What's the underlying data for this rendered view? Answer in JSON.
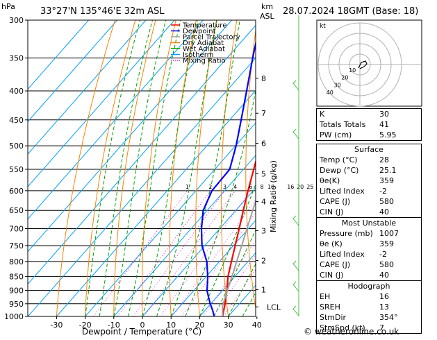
{
  "header": {
    "pressure_unit": "hPa",
    "location": "33°27'N  135°46'E  32m  ASL",
    "height_unit_line1": "km",
    "height_unit_line2": "ASL",
    "datetime": "28.07.2024  18GMT  (Base: 18)",
    "footer": "© weatheronline.co.uk"
  },
  "colors": {
    "temperature": "#ff0000",
    "dewpoint": "#0000ff",
    "parcel": "#a0a0a0",
    "dry_adiabat": "#ff8000",
    "wet_adiabat": "#00a000",
    "isotherm": "#00a0ff",
    "mixing_ratio": "#ff00ff"
  },
  "chart_data": {
    "type": "line",
    "title": "",
    "xlabel": "Dewpoint / Temperature (°C)",
    "ylabel": "",
    "right_axis_label": "Mixing Ratio (g/kg)",
    "x_ticks": [
      -30,
      -20,
      -10,
      0,
      10,
      20,
      30,
      40
    ],
    "xlim": [
      -35,
      40
    ],
    "y_ticks": [
      300,
      350,
      400,
      450,
      500,
      550,
      600,
      650,
      700,
      750,
      800,
      850,
      900,
      950,
      1000
    ],
    "ylim": [
      300,
      1000
    ],
    "y_scale": "log",
    "km_ticks": [
      {
        "label": "8",
        "p": 380
      },
      {
        "label": "7",
        "p": 438
      },
      {
        "label": "6",
        "p": 495
      },
      {
        "label": "5",
        "p": 560
      },
      {
        "label": "4",
        "p": 627
      },
      {
        "label": "3",
        "p": 706
      },
      {
        "label": "2",
        "p": 797
      },
      {
        "label": "1",
        "p": 897
      },
      {
        "label": "LCL",
        "p": 962
      }
    ],
    "mixing_ratio_labels": [
      "1",
      "2",
      "3",
      "4",
      "6",
      "8",
      "10",
      "16",
      "20",
      "25"
    ],
    "mixing_ratio_values": [
      1,
      2,
      3,
      4,
      6,
      8,
      10,
      16,
      20,
      25
    ],
    "legend": [
      "Temperature",
      "Dewpoint",
      "Parcel Trajectory",
      "Dry Adiabat",
      "Wet Adiabat",
      "Isotherm",
      "Mixing Ratio"
    ],
    "series": [
      {
        "name": "Temperature",
        "points": [
          [
            1000,
            28
          ],
          [
            975,
            26.5
          ],
          [
            950,
            25
          ],
          [
            925,
            23.2
          ],
          [
            900,
            21.6
          ],
          [
            875,
            19.6
          ],
          [
            850,
            17.6
          ],
          [
            800,
            14.2
          ],
          [
            750,
            10.6
          ],
          [
            700,
            6.8
          ],
          [
            650,
            2.6
          ],
          [
            600,
            -1.8
          ],
          [
            550,
            -6.4
          ],
          [
            500,
            -11.4
          ],
          [
            450,
            -17.2
          ],
          [
            400,
            -24
          ],
          [
            350,
            -32
          ],
          [
            310,
            -40
          ]
        ]
      },
      {
        "name": "Dewpoint",
        "points": [
          [
            1000,
            25.1
          ],
          [
            975,
            22.6
          ],
          [
            950,
            19.8
          ],
          [
            925,
            17.2
          ],
          [
            900,
            14.6
          ],
          [
            875,
            12.6
          ],
          [
            850,
            10.5
          ],
          [
            800,
            5.6
          ],
          [
            750,
            -1
          ],
          [
            700,
            -6.4
          ],
          [
            650,
            -11.4
          ],
          [
            600,
            -14.4
          ],
          [
            570,
            -14.6
          ],
          [
            550,
            -14.8
          ],
          [
            500,
            -19.8
          ],
          [
            450,
            -26
          ],
          [
            400,
            -33
          ],
          [
            350,
            -41
          ],
          [
            310,
            -48
          ]
        ]
      },
      {
        "name": "Parcel Trajectory",
        "points": [
          [
            1000,
            28
          ],
          [
            960,
            24.9
          ],
          [
            925,
            23
          ],
          [
            900,
            21.7
          ],
          [
            850,
            19
          ],
          [
            800,
            16
          ],
          [
            750,
            12.9
          ],
          [
            700,
            9.5
          ],
          [
            650,
            5.9
          ],
          [
            600,
            2.1
          ],
          [
            550,
            -2.2
          ],
          [
            500,
            -7.1
          ],
          [
            450,
            -12.7
          ],
          [
            400,
            -19.4
          ],
          [
            350,
            -27.6
          ],
          [
            310,
            -35.5
          ]
        ]
      }
    ]
  },
  "hodograph": {
    "label": "kt",
    "ring_labels": [
      "10",
      "20",
      "30",
      "40"
    ]
  },
  "indices": {
    "top": [
      {
        "label": "K",
        "value": "30"
      },
      {
        "label": "Totals Totals",
        "value": "41"
      },
      {
        "label": "PW (cm)",
        "value": "5.95"
      }
    ],
    "surface": {
      "title": "Surface",
      "rows": [
        {
          "label": "Temp (°C)",
          "value": "28"
        },
        {
          "label": "Dewp (°C)",
          "value": "25.1"
        },
        {
          "label": "θe(K)",
          "value": "359"
        },
        {
          "label": "Lifted Index",
          "value": "-2"
        },
        {
          "label": "CAPE (J)",
          "value": "580"
        },
        {
          "label": "CIN (J)",
          "value": "40"
        }
      ]
    },
    "most_unstable": {
      "title": "Most Unstable",
      "rows": [
        {
          "label": "Pressure (mb)",
          "value": "1007"
        },
        {
          "label": "θe (K)",
          "value": "359"
        },
        {
          "label": "Lifted Index",
          "value": "-2"
        },
        {
          "label": "CAPE (J)",
          "value": "580"
        },
        {
          "label": "CIN (J)",
          "value": "40"
        }
      ]
    },
    "hodograph_box": {
      "title": "Hodograph",
      "rows": [
        {
          "label": "EH",
          "value": "16"
        },
        {
          "label": "SREH",
          "value": "13"
        },
        {
          "label": "StmDir",
          "value": "354°"
        },
        {
          "label": "StmSpd (kt)",
          "value": "7"
        }
      ]
    }
  }
}
